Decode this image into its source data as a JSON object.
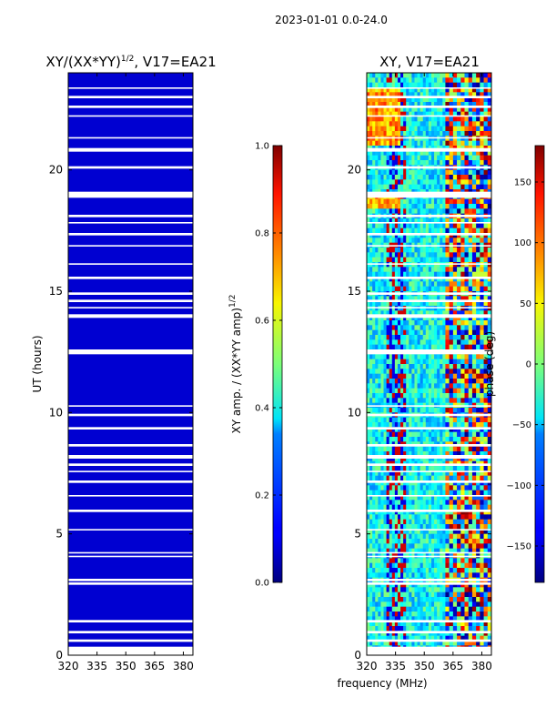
{
  "header": {
    "title": "2023-01-01 0.0-24.0"
  },
  "chart_data": [
    {
      "type": "heatmap",
      "title": "XY/(XX*YY)",
      "title_exponent": "1/2",
      "title_suffix": ", V17=EA21",
      "xlabel": "",
      "ylabel": "UT (hours)",
      "xlim": [
        320,
        385
      ],
      "ylim": [
        0,
        24
      ],
      "xticks": [
        "320",
        "335",
        "350",
        "365",
        "380"
      ],
      "yticks": [
        "0",
        "5",
        "10",
        "15",
        "20"
      ],
      "value_range": [
        0.0,
        1.0
      ],
      "colormap": "jet",
      "colorbar": {
        "label": "XY amp. / (XX*YY amp)",
        "label_exponent": "1/2",
        "ticks": [
          "0.0",
          "0.2",
          "0.4",
          "0.6",
          "0.8",
          "1.0"
        ],
        "tick_values": [
          0.0,
          0.2,
          0.4,
          0.6,
          0.8,
          1.0
        ]
      },
      "description_bands": {
        "low_band_mhz": [
          320,
          361
        ],
        "high_band_mhz": [
          361,
          385
        ]
      }
    },
    {
      "type": "heatmap",
      "title": "XY, V17=EA21",
      "xlabel": "frequency (MHz)",
      "ylabel": "",
      "xlim": [
        320,
        385
      ],
      "ylim": [
        0,
        24
      ],
      "xticks": [
        "320",
        "335",
        "350",
        "365",
        "380"
      ],
      "yticks": [
        "0",
        "5",
        "10",
        "15",
        "20"
      ],
      "value_range": [
        -180,
        180
      ],
      "colormap": "jet",
      "colorbar": {
        "label": "phase (deg)",
        "ticks": [
          "−150",
          "−100",
          "−50",
          "0",
          "50",
          "100",
          "150"
        ],
        "tick_values": [
          -150,
          -100,
          -50,
          0,
          50,
          100,
          150
        ]
      }
    }
  ],
  "flagged_gaps_hours": [
    [
      0.0,
      0.35
    ],
    [
      0.55,
      0.65
    ],
    [
      0.9,
      1.0
    ],
    [
      1.35,
      1.45
    ],
    [
      2.9,
      3.0
    ],
    [
      3.05,
      3.15
    ],
    [
      4.05,
      4.1
    ],
    [
      4.2,
      4.25
    ],
    [
      5.15,
      5.2
    ],
    [
      5.9,
      6.0
    ],
    [
      6.55,
      6.6
    ],
    [
      7.1,
      7.2
    ],
    [
      7.55,
      7.6
    ],
    [
      7.8,
      7.9
    ],
    [
      8.1,
      8.25
    ],
    [
      8.6,
      8.7
    ],
    [
      9.3,
      9.4
    ],
    [
      9.85,
      9.95
    ],
    [
      10.25,
      10.3
    ],
    [
      12.4,
      12.6
    ],
    [
      13.9,
      14.05
    ],
    [
      14.3,
      14.35
    ],
    [
      14.55,
      14.65
    ],
    [
      14.85,
      14.95
    ],
    [
      15.5,
      15.6
    ],
    [
      16.1,
      16.15
    ],
    [
      16.85,
      16.9
    ],
    [
      17.3,
      17.4
    ],
    [
      17.8,
      17.85
    ],
    [
      18.05,
      18.15
    ],
    [
      18.85,
      19.1
    ],
    [
      20.05,
      20.15
    ],
    [
      20.75,
      20.9
    ],
    [
      21.3,
      21.35
    ],
    [
      22.2,
      22.25
    ],
    [
      22.55,
      22.65
    ],
    [
      22.95,
      23.05
    ],
    [
      23.35,
      23.4
    ]
  ]
}
